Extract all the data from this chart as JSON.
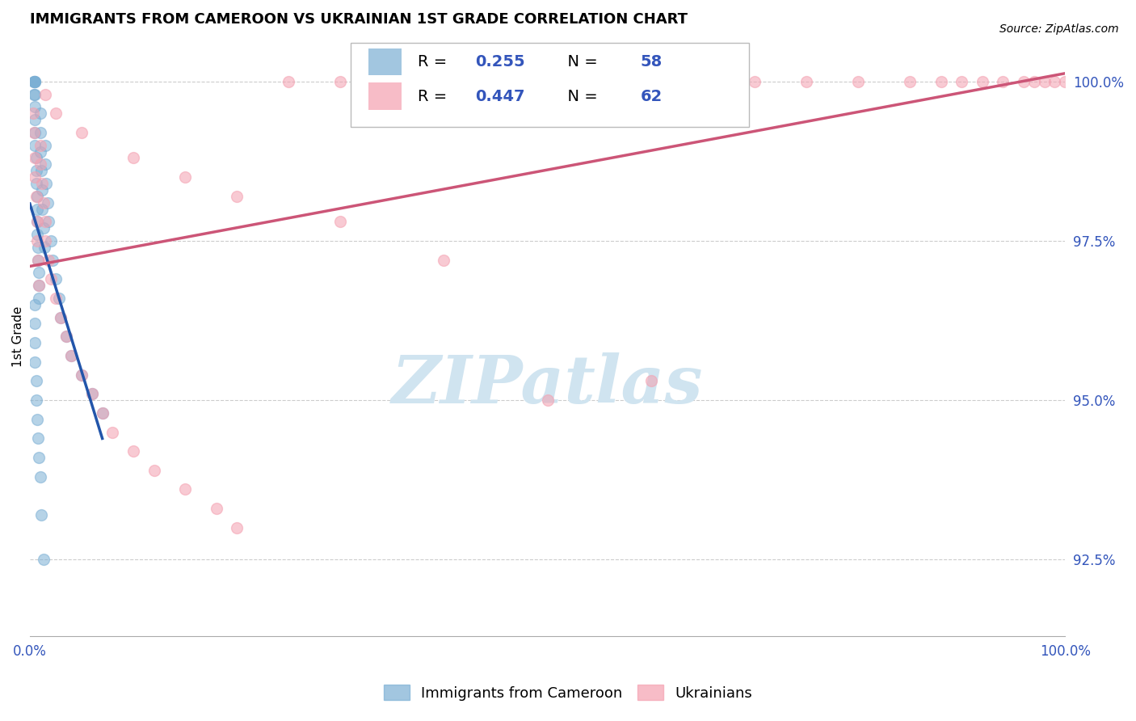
{
  "title": "IMMIGRANTS FROM CAMEROON VS UKRAINIAN 1ST GRADE CORRELATION CHART",
  "source": "Source: ZipAtlas.com",
  "ylabel": "1st Grade",
  "ylabel_right_values": [
    100.0,
    97.5,
    95.0,
    92.5
  ],
  "R_cameroon": 0.255,
  "N_cameroon": 58,
  "R_ukrainian": 0.447,
  "N_ukrainian": 62,
  "cameroon_color": "#7BAFD4",
  "ukrainian_color": "#F4A0B0",
  "cameroon_line_color": "#2255AA",
  "ukrainian_line_color": "#CC5577",
  "background_color": "#FFFFFF",
  "watermark_text": "ZIPatlas",
  "watermark_color": "#D0E4F0",
  "xmin": 0.0,
  "xmax": 100.0,
  "ymin": 91.3,
  "ymax": 100.7,
  "grid_color": "#CCCCCC",
  "axis_color": "#AAAAAA",
  "label_color": "#3355BB",
  "title_fontsize": 13,
  "tick_fontsize": 12,
  "legend_fontsize": 14,
  "marker_size": 100,
  "marker_alpha": 0.55,
  "cam_x": [
    0.4,
    0.4,
    0.4,
    0.5,
    0.5,
    0.5,
    0.5,
    0.5,
    0.5,
    0.5,
    0.5,
    0.6,
    0.6,
    0.6,
    0.7,
    0.7,
    0.7,
    0.7,
    0.8,
    0.8,
    0.9,
    0.9,
    0.9,
    1.0,
    1.0,
    1.0,
    1.1,
    1.2,
    1.2,
    1.3,
    1.4,
    1.5,
    1.5,
    1.6,
    1.7,
    1.8,
    2.0,
    2.2,
    2.5,
    2.8,
    3.0,
    3.5,
    4.0,
    5.0,
    6.0,
    7.0,
    0.5,
    0.5,
    0.5,
    0.5,
    0.6,
    0.6,
    0.7,
    0.8,
    0.9,
    1.0,
    1.1,
    1.3
  ],
  "cam_y": [
    100.0,
    100.0,
    99.8,
    100.0,
    100.0,
    100.0,
    99.8,
    99.6,
    99.4,
    99.2,
    99.0,
    98.8,
    98.6,
    98.4,
    98.2,
    98.0,
    97.8,
    97.6,
    97.4,
    97.2,
    97.0,
    96.8,
    96.6,
    99.5,
    99.2,
    98.9,
    98.6,
    98.3,
    98.0,
    97.7,
    97.4,
    99.0,
    98.7,
    98.4,
    98.1,
    97.8,
    97.5,
    97.2,
    96.9,
    96.6,
    96.3,
    96.0,
    95.7,
    95.4,
    95.1,
    94.8,
    96.5,
    96.2,
    95.9,
    95.6,
    95.3,
    95.0,
    94.7,
    94.4,
    94.1,
    93.8,
    93.2,
    92.5
  ],
  "ukr_x": [
    0.3,
    0.4,
    0.5,
    0.5,
    0.6,
    0.7,
    0.7,
    0.8,
    0.9,
    1.0,
    1.0,
    1.2,
    1.3,
    1.5,
    1.5,
    1.8,
    2.0,
    2.5,
    3.0,
    3.5,
    4.0,
    5.0,
    6.0,
    7.0,
    8.0,
    10.0,
    12.0,
    15.0,
    18.0,
    20.0,
    25.0,
    30.0,
    35.0,
    40.0,
    45.0,
    50.0,
    55.0,
    60.0,
    65.0,
    70.0,
    75.0,
    80.0,
    85.0,
    88.0,
    90.0,
    92.0,
    94.0,
    96.0,
    97.0,
    98.0,
    99.0,
    100.0,
    1.5,
    2.5,
    5.0,
    10.0,
    15.0,
    20.0,
    30.0,
    40.0,
    50.0,
    60.0
  ],
  "ukr_y": [
    99.5,
    99.2,
    98.8,
    98.5,
    98.2,
    97.8,
    97.5,
    97.2,
    96.8,
    99.0,
    98.7,
    98.4,
    98.1,
    97.8,
    97.5,
    97.2,
    96.9,
    96.6,
    96.3,
    96.0,
    95.7,
    95.4,
    95.1,
    94.8,
    94.5,
    94.2,
    93.9,
    93.6,
    93.3,
    93.0,
    100.0,
    100.0,
    100.0,
    100.0,
    100.0,
    100.0,
    100.0,
    100.0,
    100.0,
    100.0,
    100.0,
    100.0,
    100.0,
    100.0,
    100.0,
    100.0,
    100.0,
    100.0,
    100.0,
    100.0,
    100.0,
    100.0,
    99.8,
    99.5,
    99.2,
    98.8,
    98.5,
    98.2,
    97.8,
    97.2,
    95.0,
    95.3
  ]
}
